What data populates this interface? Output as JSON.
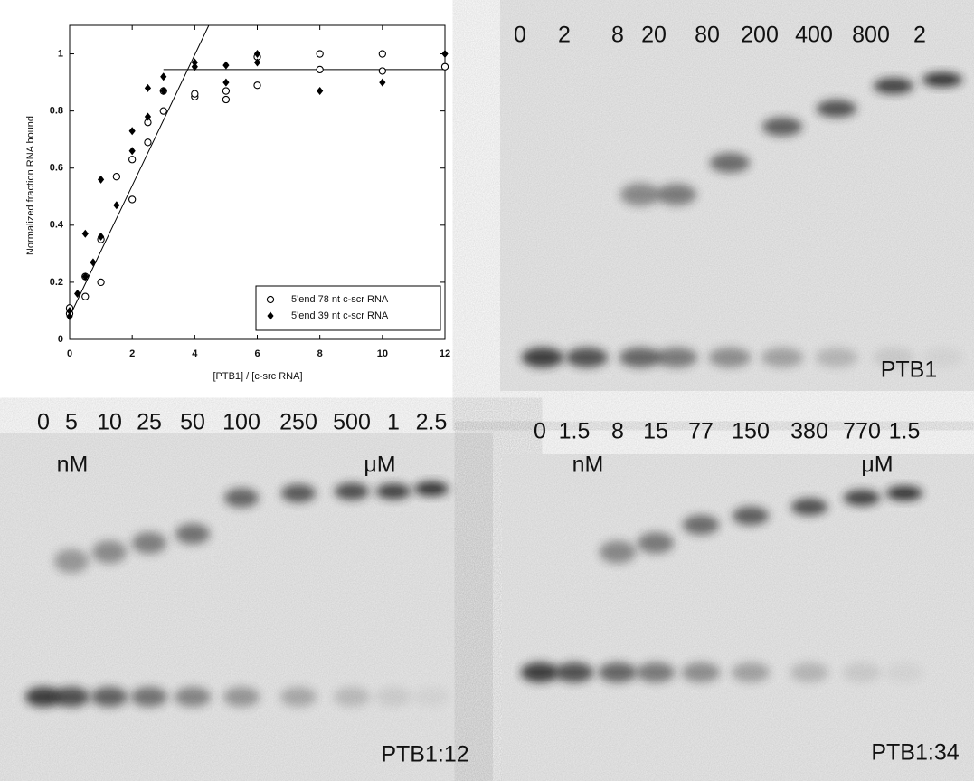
{
  "chart_data": {
    "type": "scatter",
    "x_label": "[PTB1] / [c-src RNA]",
    "y_label": "Normalized fraction RNA bound",
    "xlim": [
      0,
      12
    ],
    "ylim": [
      0,
      1.1
    ],
    "xticks": [
      0,
      2,
      4,
      6,
      8,
      10,
      12
    ],
    "yticks": [
      0,
      0.2,
      0.4,
      0.6,
      0.8,
      1
    ],
    "legend": "lower right",
    "series": [
      {
        "name": "5'end 78 nt c-scr RNA",
        "marker": "open-circle",
        "color": "#000000",
        "x": [
          0,
          0,
          0.5,
          0.5,
          1,
          1,
          1.5,
          2,
          2,
          2.5,
          2.5,
          3,
          3,
          4,
          4,
          5,
          5,
          6,
          6,
          8,
          8,
          10,
          10,
          12
        ],
        "values": [
          0.11,
          0.09,
          0.15,
          0.22,
          0.2,
          0.35,
          0.57,
          0.49,
          0.63,
          0.69,
          0.76,
          0.8,
          0.87,
          0.85,
          0.86,
          0.84,
          0.87,
          0.89,
          0.99,
          0.945,
          1.0,
          0.94,
          1.0,
          0.955
        ]
      },
      {
        "name": "5'end 39 nt c-scr RNA",
        "marker": "filled-diamond",
        "color": "#000000",
        "x": [
          0,
          0,
          0.25,
          0.5,
          0.5,
          0.75,
          1,
          1,
          1.5,
          2,
          2,
          2.5,
          2.5,
          3,
          3,
          4,
          4,
          5,
          5,
          6,
          6,
          8,
          10,
          12
        ],
        "values": [
          0.08,
          0.1,
          0.16,
          0.37,
          0.22,
          0.27,
          0.36,
          0.56,
          0.47,
          0.66,
          0.73,
          0.78,
          0.88,
          0.87,
          0.92,
          0.97,
          0.955,
          0.96,
          0.9,
          0.97,
          1.0,
          0.87,
          0.9,
          1.0
        ]
      }
    ],
    "fit_lines": [
      {
        "x": [
          0,
          4.45
        ],
        "y": [
          0.08,
          1.1
        ]
      },
      {
        "x": [
          3,
          12
        ],
        "y": [
          0.945,
          0.945
        ]
      }
    ]
  },
  "gels": [
    {
      "lanes": [
        "0",
        "2",
        "8",
        "20",
        "80",
        "200",
        "400",
        "800",
        "2"
      ],
      "label": "PTB1"
    },
    {
      "lanes": [
        "0",
        "5",
        "10",
        "25",
        "50",
        "100",
        "250",
        "500",
        "1",
        "2.5"
      ],
      "units": [
        "nM",
        "μM"
      ],
      "label": "PTB1:12"
    },
    {
      "lanes": [
        "0",
        "1.5",
        "8",
        "15",
        "77",
        "150",
        "380",
        "770",
        "1.5"
      ],
      "units": [
        "nM",
        "μM"
      ],
      "label": "PTB1:34"
    }
  ]
}
